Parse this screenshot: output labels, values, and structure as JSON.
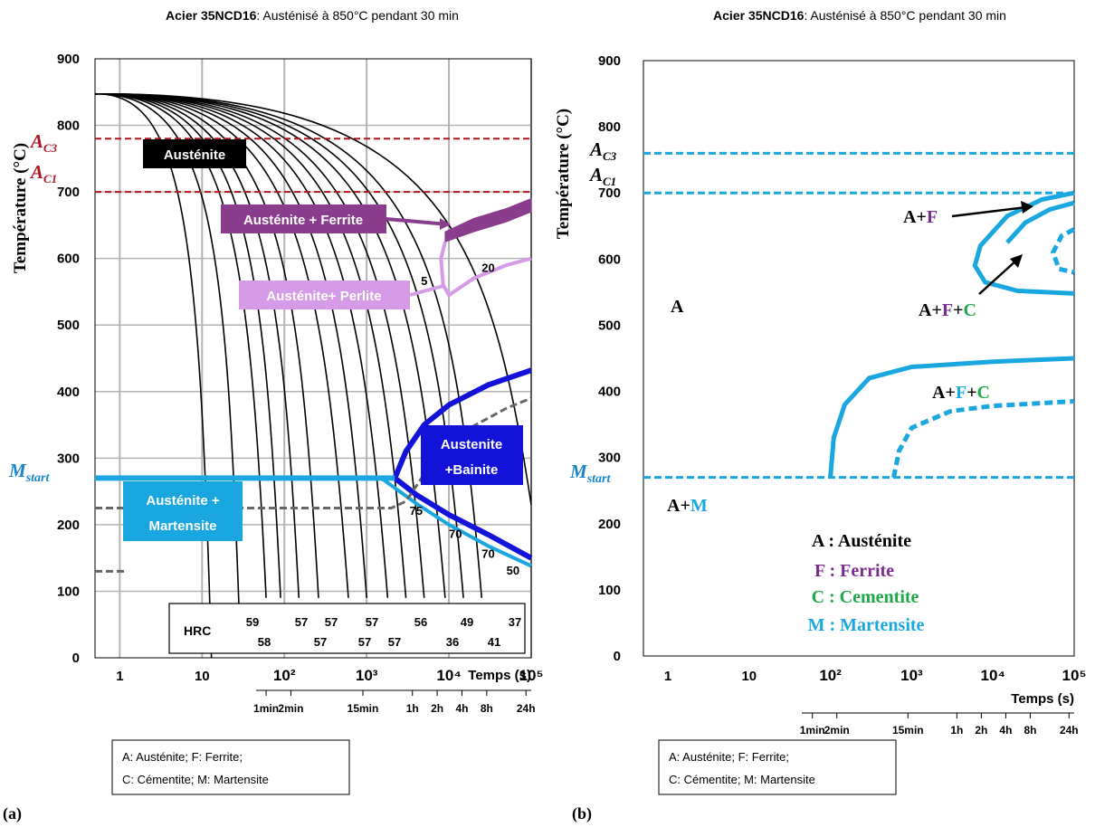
{
  "figure": {
    "panel_a_label": "(a)",
    "panel_b_label": "(b)"
  },
  "colors": {
    "ac_line": "#b0141e",
    "martensite": "#1aa7e0",
    "bainite": "#1212d8",
    "ferrite": "#8a3d8c",
    "perlite": "#d59be6",
    "austenite_box": "#000000",
    "cementite": "#1ea84a",
    "ferrite_text": "#7a2d8f",
    "grid": "#b3b3b3"
  },
  "chart_data": [
    {
      "type": "line",
      "panel": "a",
      "title_bold": "Acier 35NCD16",
      "title_rest": ": Austénisé à 850°C pendant 30 min",
      "ylabel": "Température (°C)",
      "xlabel": "Temps (s)",
      "x_scale": "log",
      "xlim": [
        0.5,
        100000
      ],
      "ylim": [
        0,
        900
      ],
      "grid": true,
      "y_ticks": [
        "0",
        "100",
        "200",
        "300",
        "400",
        "500",
        "600",
        "700",
        "800",
        "900"
      ],
      "x_ticks": [
        "1",
        "10",
        "10²",
        "10³",
        "10⁴",
        "10⁵"
      ],
      "time_ticks": [
        {
          "label": "1min",
          "s": 60
        },
        {
          "label": "2min",
          "s": 120
        },
        {
          "label": "15min",
          "s": 900
        },
        {
          "label": "1h",
          "s": 3600
        },
        {
          "label": "2h",
          "s": 7200
        },
        {
          "label": "4h",
          "s": 14400
        },
        {
          "label": "8h",
          "s": 28800
        },
        {
          "label": "24h",
          "s": 86400
        }
      ],
      "reference_lines": [
        {
          "label_main": "A",
          "label_sub": "C3",
          "y": 780
        },
        {
          "label_main": "A",
          "label_sub": "C1",
          "y": 700
        },
        {
          "label_main": "M",
          "label_sub": "start",
          "y": 270
        }
      ],
      "regions": [
        {
          "label": "Austénite"
        },
        {
          "label": "Austénite + Ferrite"
        },
        {
          "label": "Austénite+ Perlite"
        },
        {
          "label_line1": "Austenite",
          "label_line2": "+Bainite"
        },
        {
          "label_line1": "Austénite +",
          "label_line2": "Martensite"
        }
      ],
      "cooling_curves": [
        {
          "start": 6,
          "end_x": 13,
          "end_y": 0
        },
        {
          "start": 12,
          "end_x": 28,
          "end_y": 80
        },
        {
          "start": 20,
          "end_x": 60,
          "end_y": 90
        },
        {
          "start": 30,
          "end_x": 90,
          "end_y": 90
        },
        {
          "start": 45,
          "end_x": 150,
          "end_y": 90
        },
        {
          "start": 70,
          "end_x": 260,
          "end_y": 90
        },
        {
          "start": 110,
          "end_x": 600,
          "end_y": 90
        },
        {
          "start": 180,
          "end_x": 1000,
          "end_y": 90
        },
        {
          "start": 280,
          "end_x": 1800,
          "end_y": 90
        },
        {
          "start": 450,
          "end_x": 3000,
          "end_y": 90
        },
        {
          "start": 700,
          "end_x": 5000,
          "end_y": 90
        },
        {
          "start": 1200,
          "end_x": 9000,
          "end_y": 90
        },
        {
          "start": 2000,
          "end_x": 15000,
          "end_y": 90
        },
        {
          "start": 3500,
          "end_x": 25000,
          "end_y": 90
        },
        {
          "start": 7000,
          "end_x": 100000,
          "end_y": 230
        }
      ],
      "curve_annotations": [
        {
          "label": "5",
          "x": 5000,
          "y": 560
        },
        {
          "label": "20",
          "x": 30000,
          "y": 580
        },
        {
          "label": "75",
          "x": 4000,
          "y": 215
        },
        {
          "label": "70",
          "x": 12000,
          "y": 180
        },
        {
          "label": "70",
          "x": 30000,
          "y": 150
        },
        {
          "label": "50",
          "x": 60000,
          "y": 125
        }
      ],
      "hrc_label": "HRC",
      "hrc_top": [
        "59",
        "57",
        "57",
        "57",
        "56",
        "49",
        "37"
      ],
      "hrc_bottom": [
        "58",
        "57",
        "57",
        "57",
        "36",
        "41"
      ],
      "legend_line1": "A: Austénite; F: Ferrite;",
      "legend_line2": "C: Cémentite; M: Martensite"
    },
    {
      "type": "line",
      "panel": "b",
      "title_bold": "Acier 35NCD16",
      "title_rest": ": Austénisé à 850°C pendant 30 min",
      "ylabel": "Température (°C)",
      "xlabel": "Temps (s)",
      "x_scale": "log",
      "xlim": [
        0.5,
        100000
      ],
      "ylim": [
        0,
        900
      ],
      "grid": false,
      "y_ticks": [
        "0",
        "100",
        "200",
        "300",
        "400",
        "500",
        "600",
        "700",
        "800",
        "900"
      ],
      "x_ticks": [
        "1",
        "10",
        "10²",
        "10³",
        "10⁴",
        "10⁵"
      ],
      "time_ticks": [
        {
          "label": "1min",
          "s": 60
        },
        {
          "label": "2min",
          "s": 120
        },
        {
          "label": "15min",
          "s": 900
        },
        {
          "label": "1h",
          "s": 3600
        },
        {
          "label": "2h",
          "s": 7200
        },
        {
          "label": "4h",
          "s": 14400
        },
        {
          "label": "8h",
          "s": 28800
        },
        {
          "label": "24h",
          "s": 86400
        }
      ],
      "reference_lines": [
        {
          "label_main": "A",
          "label_sub": "C3",
          "y": 760
        },
        {
          "label_main": "A",
          "label_sub": "C1",
          "y": 700
        },
        {
          "label_main": "M",
          "label_sub": "start",
          "y": 270
        }
      ],
      "regions": [
        {
          "label": "A"
        },
        {
          "parts": [
            "A+",
            "F"
          ]
        },
        {
          "parts": [
            "A+",
            "F",
            "+",
            "C"
          ]
        },
        {
          "parts": [
            "A+",
            "F",
            "+",
            "C"
          ]
        },
        {
          "parts": [
            "A+",
            "M"
          ]
        }
      ],
      "legend": [
        {
          "letter": "A",
          "text": " : Austénite"
        },
        {
          "letter": "F",
          "text": " : Ferrite"
        },
        {
          "letter": "C",
          "text": " : Cementite"
        },
        {
          "letter": "M",
          "text": " : Martensite"
        }
      ],
      "legend_line1": "A: Austénite; F: Ferrite;",
      "legend_line2": "C: Cémentite; M: Martensite"
    }
  ]
}
